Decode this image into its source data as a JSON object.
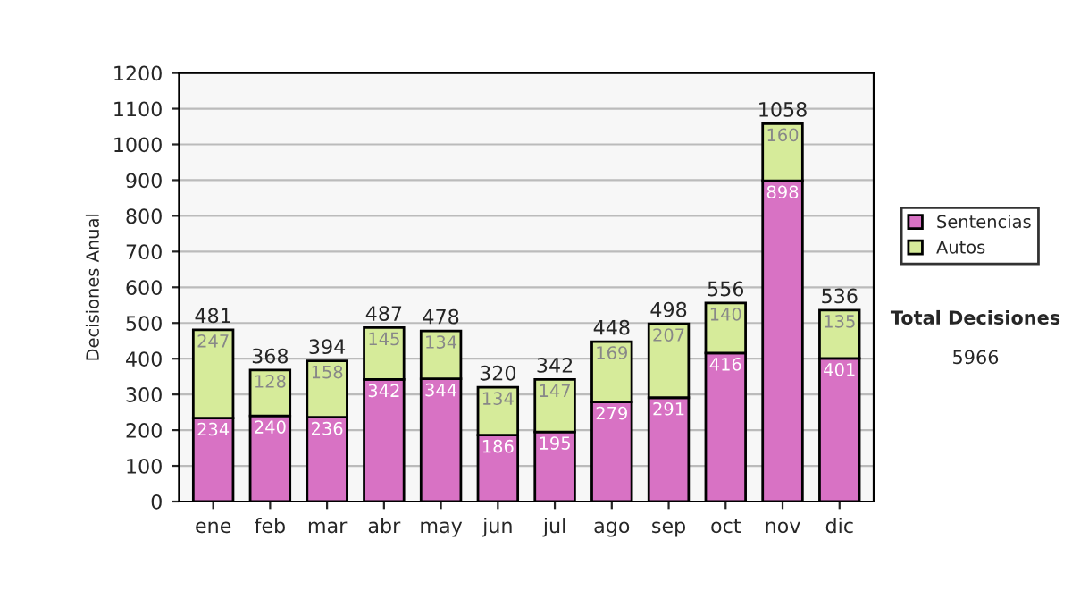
{
  "chart_data": {
    "type": "bar",
    "stacked": true,
    "ylabel": "Decisiones Anual",
    "categories": [
      "ene",
      "feb",
      "mar",
      "abr",
      "may",
      "jun",
      "jul",
      "ago",
      "sep",
      "oct",
      "nov",
      "dic"
    ],
    "series": [
      {
        "name": "Sentencias",
        "color": "#d872c4",
        "values": [
          234,
          240,
          236,
          342,
          344,
          186,
          195,
          279,
          291,
          416,
          898,
          401
        ]
      },
      {
        "name": "Autos",
        "color": "#d6eb9a",
        "values": [
          247,
          128,
          158,
          145,
          134,
          134,
          147,
          169,
          207,
          140,
          160,
          135
        ]
      }
    ],
    "totals": [
      "481",
      "368",
      "394",
      "487",
      "478",
      "320",
      "342",
      "448",
      "498",
      "556",
      "1058",
      "536"
    ],
    "data_labels": true,
    "ylim": [
      0,
      1200
    ],
    "yticks": [
      0,
      100,
      200,
      300,
      400,
      500,
      600,
      700,
      800,
      900,
      1000,
      1100,
      1200
    ],
    "grid": "y",
    "legend": "right",
    "annotations": [
      "Total Decisiones",
      "5966"
    ]
  }
}
